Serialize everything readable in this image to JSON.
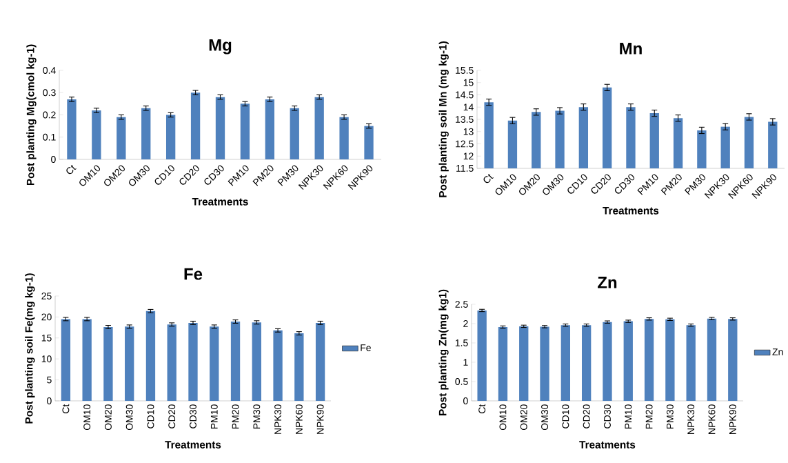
{
  "chart_data": [
    {
      "type": "bar",
      "title": "Mg",
      "xlabel": "Treatments",
      "ylabel": "Post planting Mg(cmol kg-1)",
      "categories": [
        "Ct",
        "OM10",
        "OM20",
        "OM30",
        "CD10",
        "CD20",
        "CD30",
        "PM10",
        "PM20",
        "PM30",
        "NPK30",
        "NPK60",
        "NPK90"
      ],
      "ylim": [
        0,
        0.4
      ],
      "yticks": [
        0,
        0.1,
        0.2,
        0.3,
        0.4
      ],
      "series": [
        {
          "color": "#4f81bd",
          "values": [
            0.27,
            0.22,
            0.19,
            0.23,
            0.2,
            0.3,
            0.28,
            0.25,
            0.27,
            0.23,
            0.28,
            0.19,
            0.15
          ],
          "errors": [
            0.01,
            0.01,
            0.01,
            0.01,
            0.01,
            0.01,
            0.01,
            0.01,
            0.01,
            0.01,
            0.01,
            0.01,
            0.01
          ]
        }
      ]
    },
    {
      "type": "bar",
      "title": "Mn",
      "xlabel": "Treatments",
      "ylabel": "Post planting soil Mn (mg kg-1)",
      "categories": [
        "Ct",
        "OM10",
        "OM20",
        "OM30",
        "CD10",
        "CD20",
        "CD30",
        "PM10",
        "PM20",
        "PM30",
        "NPK30",
        "NPK60",
        "NPK90"
      ],
      "ylim": [
        11.5,
        15.5
      ],
      "yticks": [
        11.5,
        12,
        12.5,
        13,
        13.5,
        14,
        14.5,
        15,
        15.5
      ],
      "series": [
        {
          "color": "#4f81bd",
          "values": [
            14.2,
            13.45,
            13.8,
            13.85,
            14.0,
            14.8,
            14.0,
            13.75,
            13.55,
            13.05,
            13.2,
            13.6,
            13.4
          ],
          "errors": [
            0.13,
            0.13,
            0.13,
            0.13,
            0.13,
            0.13,
            0.13,
            0.13,
            0.13,
            0.13,
            0.13,
            0.13,
            0.13
          ]
        }
      ]
    },
    {
      "type": "bar",
      "title": "Fe",
      "xlabel": "Treatments",
      "ylabel": "Post planting soil Fe(mg kg-1)",
      "categories": [
        "Ct",
        "OM10",
        "OM20",
        "OM30",
        "CD10",
        "CD20",
        "CD30",
        "PM10",
        "PM20",
        "PM30",
        "NPK30",
        "NPK60",
        "NPK90"
      ],
      "ylim": [
        0,
        25
      ],
      "yticks": [
        0,
        5,
        10,
        15,
        20,
        25
      ],
      "legend": "right",
      "series": [
        {
          "name": "Fe",
          "color": "#4f81bd",
          "values": [
            19.5,
            19.5,
            17.6,
            17.7,
            21.4,
            18.2,
            18.6,
            17.7,
            18.9,
            18.7,
            16.8,
            16.1,
            18.6
          ],
          "errors": [
            0.4,
            0.4,
            0.4,
            0.4,
            0.4,
            0.4,
            0.4,
            0.4,
            0.4,
            0.4,
            0.4,
            0.4,
            0.4
          ]
        }
      ]
    },
    {
      "type": "bar",
      "title": "Zn",
      "xlabel": "Treatments",
      "ylabel": "Post planting Zn(mg kg1)",
      "categories": [
        "Ct",
        "OM10",
        "OM20",
        "OM30",
        "CD10",
        "CD20",
        "CD30",
        "PM10",
        "PM20",
        "PM30",
        "NPK30",
        "NPK60",
        "NPK90"
      ],
      "ylim": [
        0,
        2.5
      ],
      "yticks": [
        0,
        0.5,
        1,
        1.5,
        2,
        2.5
      ],
      "legend": "right",
      "series": [
        {
          "name": "Zn",
          "color": "#4f81bd",
          "values": [
            2.34,
            1.91,
            1.93,
            1.92,
            1.96,
            1.96,
            2.04,
            2.06,
            2.12,
            2.11,
            1.96,
            2.13,
            2.12
          ],
          "errors": [
            0.03,
            0.03,
            0.03,
            0.03,
            0.03,
            0.03,
            0.03,
            0.03,
            0.03,
            0.03,
            0.03,
            0.03,
            0.03
          ]
        }
      ]
    }
  ]
}
